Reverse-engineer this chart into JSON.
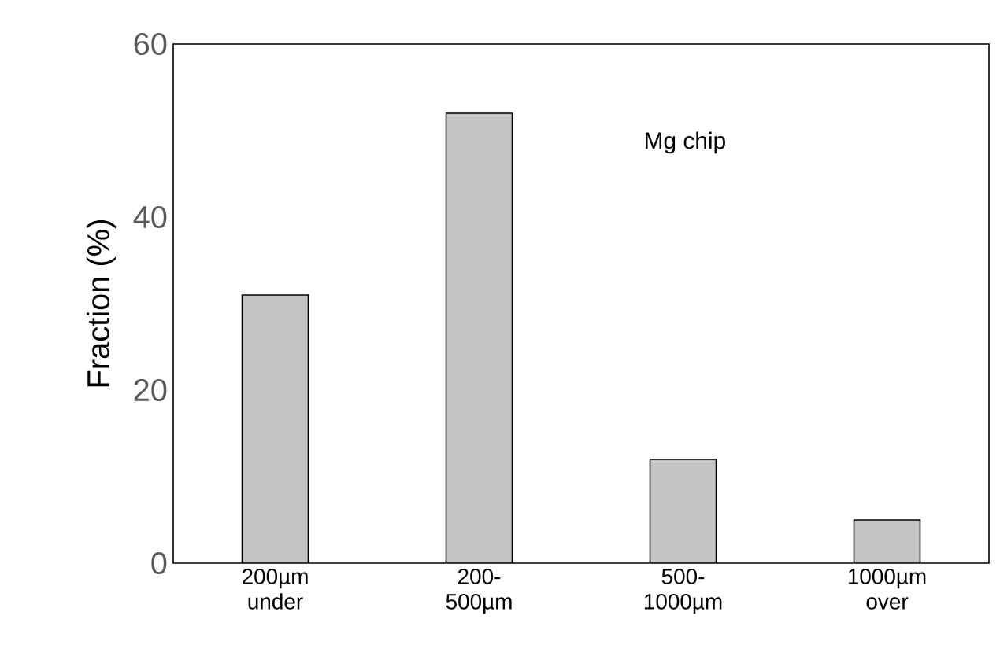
{
  "chart_data": {
    "type": "bar",
    "ylabel": "Fraction (%)",
    "categories": [
      "200µm under",
      "200-500µm",
      "500-1000µm",
      "1000µm over"
    ],
    "values": [
      31,
      52,
      12,
      5
    ],
    "color": "#c4c4c4",
    "ylim": [
      0,
      60
    ],
    "yticks": [
      0,
      20,
      40,
      60
    ],
    "grid": false,
    "annotations": [
      "Mg chip"
    ]
  }
}
